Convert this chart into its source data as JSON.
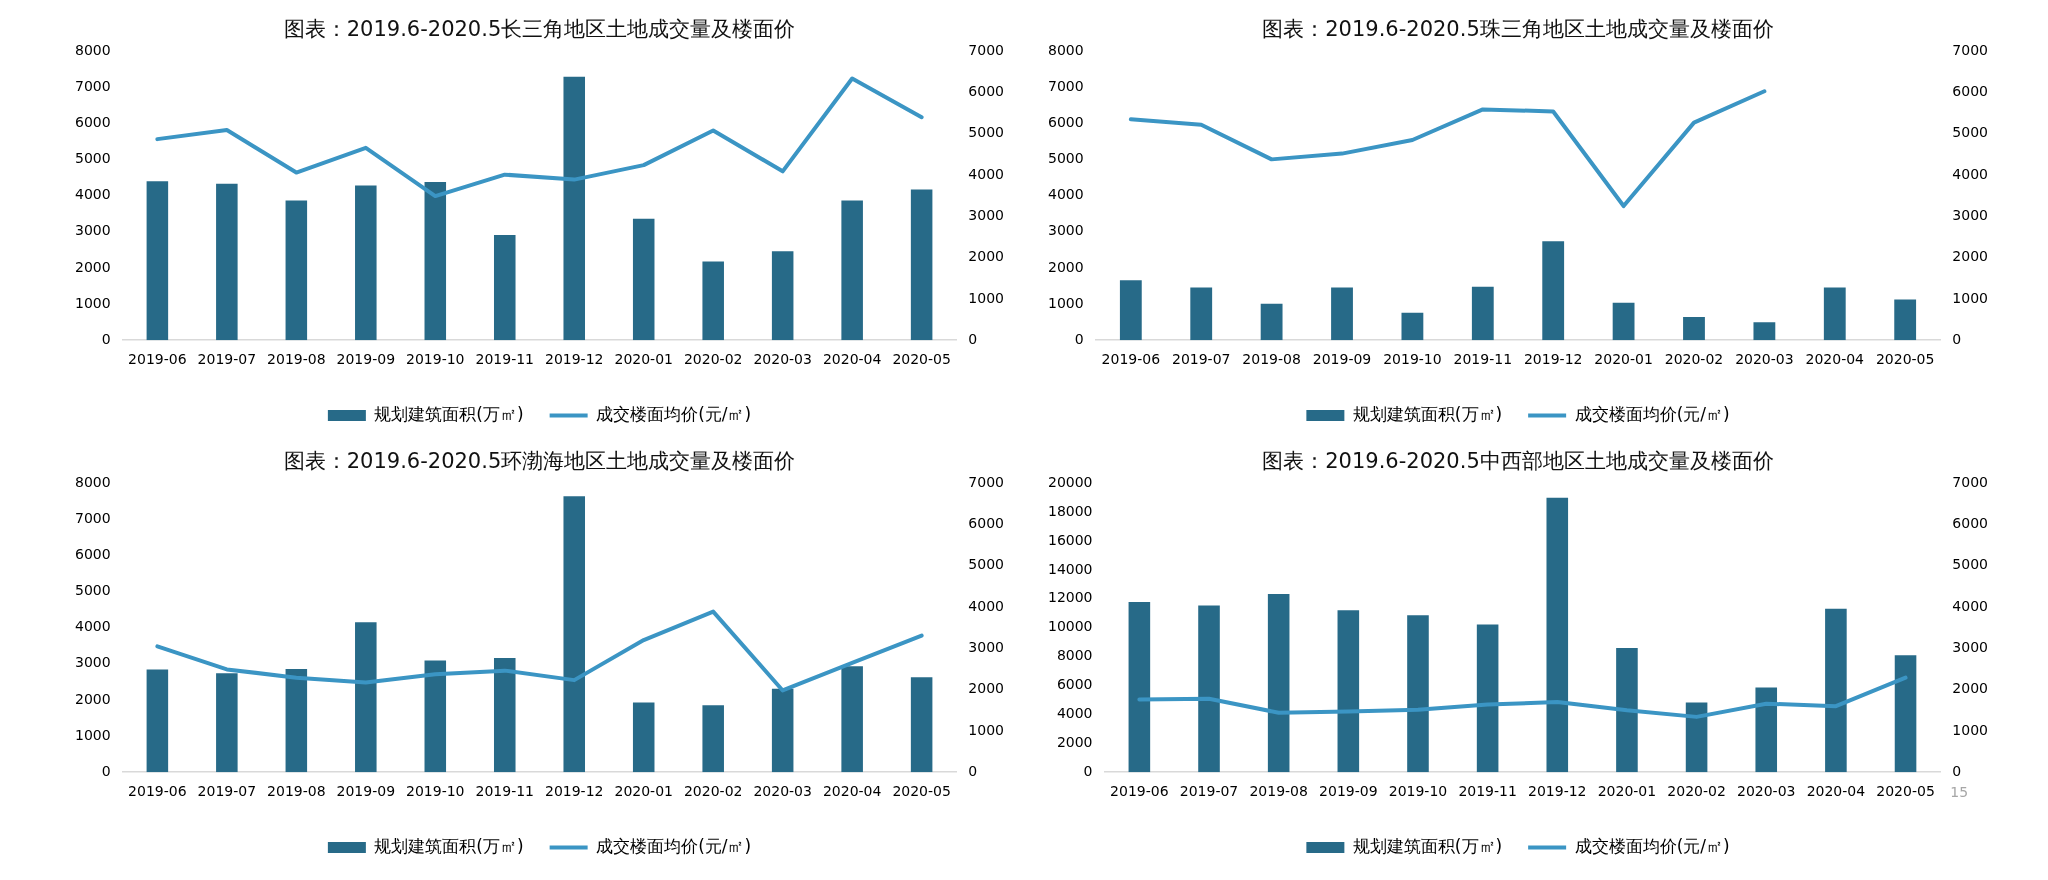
{
  "chart_data": [
    {
      "type": "bar",
      "title": "图表：2019.6-2020.5长三角地区土地成交量及楼面价",
      "categories": [
        "2019-06",
        "2019-07",
        "2019-08",
        "2019-09",
        "2019-10",
        "2019-11",
        "2019-12",
        "2020-01",
        "2020-02",
        "2020-03",
        "2020-04",
        "2020-05"
      ],
      "series": [
        {
          "name": "规划建筑面积(万㎡)",
          "color": "#276a88",
          "values": [
            4400,
            4330,
            3870,
            4280,
            4380,
            2910,
            7290,
            3360,
            2180,
            2460,
            3870,
            4170
          ]
        },
        {
          "name": "成交楼面均价(元/㎡)",
          "type": "line",
          "axis": "y2",
          "color": "#3b95c4",
          "values": [
            4870,
            5090,
            4060,
            4660,
            3490,
            4010,
            3890,
            4240,
            5080,
            4090,
            6340,
            5400
          ]
        }
      ],
      "ylim": [
        0,
        8000
      ],
      "yticks": [
        0,
        1000,
        2000,
        3000,
        4000,
        5000,
        6000,
        7000,
        8000
      ],
      "y2lim": [
        0,
        7000
      ],
      "y2ticks": [
        0,
        1000,
        2000,
        3000,
        4000,
        5000,
        6000,
        7000
      ],
      "legend": "bottom"
    },
    {
      "type": "bar",
      "title": "图表：2019.6-2020.5珠三角地区土地成交量及楼面价",
      "categories": [
        "2019-06",
        "2019-07",
        "2019-08",
        "2019-09",
        "2019-10",
        "2019-11",
        "2019-12",
        "2020-01",
        "2020-02",
        "2020-03",
        "2020-04",
        "2020-05"
      ],
      "series": [
        {
          "name": "规划建筑面积(万㎡)",
          "color": "#276a88",
          "values": [
            1660,
            1460,
            1010,
            1460,
            760,
            1480,
            2740,
            1040,
            640,
            500,
            1460,
            1130
          ]
        },
        {
          "name": "成交楼面均价(元/㎡)",
          "type": "line",
          "axis": "y2",
          "color": "#3b95c4",
          "values": [
            5350,
            5220,
            4380,
            4520,
            4850,
            5590,
            5540,
            3250,
            5270,
            6030,
            null,
            null
          ]
        }
      ],
      "ylim": [
        0,
        8000
      ],
      "yticks": [
        0,
        1000,
        2000,
        3000,
        4000,
        5000,
        6000,
        7000,
        8000
      ],
      "y2lim": [
        0,
        7000
      ],
      "y2ticks": [
        0,
        1000,
        2000,
        3000,
        4000,
        5000,
        6000,
        7000
      ],
      "legend": "bottom"
    },
    {
      "type": "bar",
      "title": "图表：2019.6-2020.5环渤海地区土地成交量及楼面价",
      "categories": [
        "2019-06",
        "2019-07",
        "2019-08",
        "2019-09",
        "2019-10",
        "2019-11",
        "2019-12",
        "2020-01",
        "2020-02",
        "2020-03",
        "2020-04",
        "2020-05"
      ],
      "series": [
        {
          "name": "规划建筑面积(万㎡)",
          "color": "#276a88",
          "values": [
            2840,
            2740,
            2860,
            4150,
            3090,
            3160,
            7640,
            1930,
            1850,
            2310,
            2930,
            2630
          ]
        },
        {
          "name": "成交楼面均价(元/㎡)",
          "type": "line",
          "axis": "y2",
          "color": "#3b95c4",
          "values": [
            3050,
            2490,
            2290,
            2170,
            2370,
            2460,
            2230,
            3200,
            3890,
            1980,
            2650,
            3310
          ]
        }
      ],
      "ylim": [
        0,
        8000
      ],
      "yticks": [
        0,
        1000,
        2000,
        3000,
        4000,
        5000,
        6000,
        7000,
        8000
      ],
      "y2lim": [
        0,
        7000
      ],
      "y2ticks": [
        0,
        1000,
        2000,
        3000,
        4000,
        5000,
        6000,
        7000
      ],
      "legend": "bottom"
    },
    {
      "type": "bar",
      "title": "图表：2019.6-2020.5中西部地区土地成交量及楼面价",
      "categories": [
        "2019-06",
        "2019-07",
        "2019-08",
        "2019-09",
        "2019-10",
        "2019-11",
        "2019-12",
        "2020-01",
        "2020-02",
        "2020-03",
        "2020-04",
        "2020-05"
      ],
      "series": [
        {
          "name": "规划建筑面积(万㎡)",
          "color": "#276a88",
          "values": [
            11780,
            11530,
            12330,
            11200,
            10860,
            10230,
            18990,
            8600,
            4820,
            5870,
            11320,
            8090
          ]
        },
        {
          "name": "成交楼面均价(元/㎡)",
          "type": "line",
          "axis": "y2",
          "color": "#3b95c4",
          "values": [
            1760,
            1780,
            1440,
            1470,
            1510,
            1640,
            1700,
            1500,
            1340,
            1660,
            1600,
            2290
          ]
        }
      ],
      "ylim": [
        0,
        20000
      ],
      "yticks": [
        0,
        2000,
        4000,
        6000,
        8000,
        10000,
        12000,
        14000,
        16000,
        18000,
        20000
      ],
      "y2lim": [
        0,
        7000
      ],
      "y2ticks": [
        0,
        1000,
        2000,
        3000,
        4000,
        5000,
        6000,
        7000
      ],
      "legend": "bottom",
      "annotations": [
        "15"
      ]
    }
  ]
}
